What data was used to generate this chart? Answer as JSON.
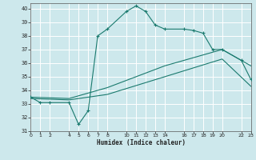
{
  "xlabel": "Humidex (Indice chaleur)",
  "xlim": [
    0,
    23
  ],
  "ylim": [
    31,
    40.4
  ],
  "yticks": [
    31,
    32,
    33,
    34,
    35,
    36,
    37,
    38,
    39,
    40
  ],
  "xticks": [
    0,
    1,
    2,
    4,
    5,
    6,
    7,
    8,
    10,
    11,
    12,
    13,
    14,
    16,
    17,
    18,
    19,
    20,
    22,
    23
  ],
  "bg_color": "#cde8ec",
  "grid_color": "#ffffff",
  "line_color": "#1a7a6e",
  "line1_x": [
    0,
    1,
    2,
    4,
    5,
    6,
    7,
    8,
    10,
    11,
    12,
    13,
    14,
    16,
    17,
    18,
    19,
    20,
    22,
    23
  ],
  "line1_y": [
    33.5,
    33.1,
    33.1,
    33.1,
    31.5,
    32.5,
    38.0,
    38.5,
    39.8,
    40.2,
    39.8,
    38.8,
    38.5,
    38.5,
    38.4,
    38.2,
    37.0,
    37.0,
    36.2,
    34.8
  ],
  "line2_x": [
    0,
    4,
    8,
    14,
    20,
    23
  ],
  "line2_y": [
    33.4,
    33.3,
    33.7,
    35.0,
    36.3,
    34.3
  ],
  "line3_x": [
    0,
    4,
    8,
    14,
    20,
    23
  ],
  "line3_y": [
    33.5,
    33.4,
    34.2,
    35.8,
    37.0,
    35.8
  ],
  "figsize": [
    3.2,
    2.0
  ],
  "dpi": 100
}
